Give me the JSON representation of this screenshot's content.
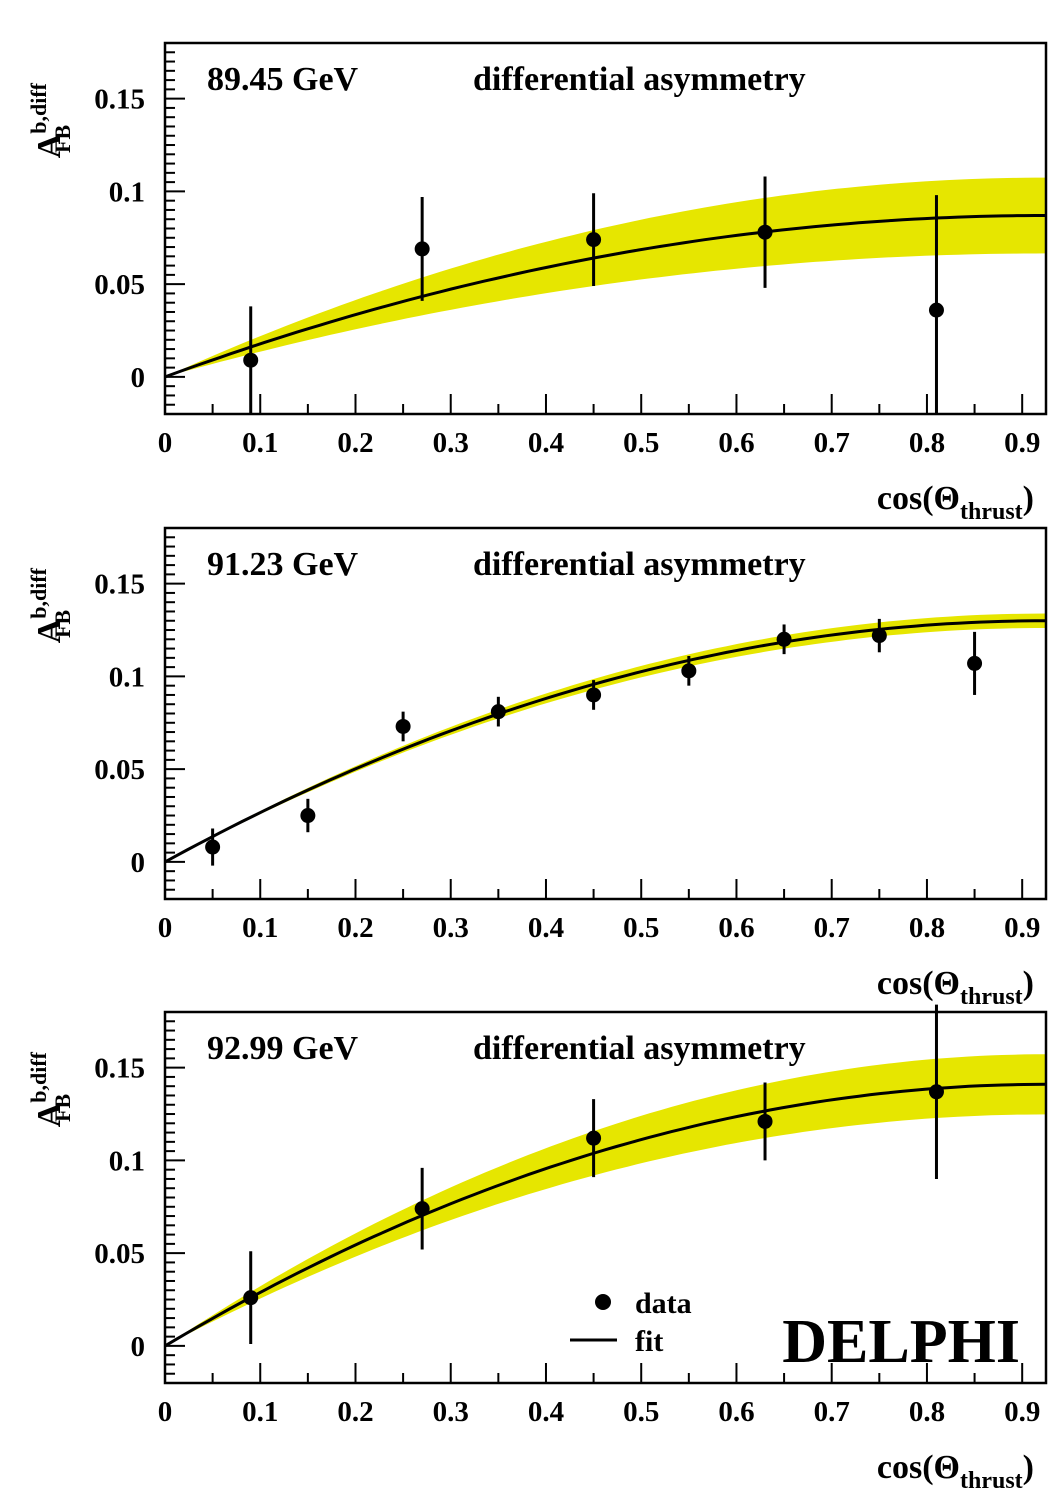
{
  "brand": "DELPHI",
  "legend": {
    "data_label": "data",
    "fit_label": "fit",
    "position": "bottom-right of last panel"
  },
  "colors": {
    "band": "#e6e600",
    "marks": "#000000",
    "background": "#ffffff"
  },
  "chart_data": [
    {
      "type": "scatter",
      "energy_label": "89.45 GeV",
      "subtitle": "differential asymmetry",
      "ylabel": {
        "main": "A",
        "sup": "b,diff",
        "sub": "FB"
      },
      "xlabel": {
        "main": "cos(Θ",
        "sub": "thrust",
        "close": ")"
      },
      "xlim": [
        0,
        0.925
      ],
      "ylim": [
        -0.02,
        0.18
      ],
      "xticks": [
        "0",
        "0.1",
        "0.2",
        "0.3",
        "0.4",
        "0.5",
        "0.6",
        "0.7",
        "0.8",
        "0.9"
      ],
      "yticks": [
        "0",
        "0.05",
        "0.1",
        "0.15"
      ],
      "series": [
        {
          "kind": "points",
          "x": [
            0.09,
            0.27,
            0.45,
            0.63,
            0.81
          ],
          "y": [
            0.009,
            0.069,
            0.074,
            0.078,
            0.036
          ],
          "err": [
            0.029,
            0.028,
            0.025,
            0.03,
            0.062
          ]
        },
        {
          "kind": "fit",
          "asymptote": 0.087,
          "band_relative_halfwidth": 0.235
        }
      ]
    },
    {
      "type": "scatter",
      "energy_label": "91.23 GeV",
      "subtitle": "differential asymmetry",
      "ylabel": {
        "main": "A",
        "sup": "b,diff",
        "sub": "FB"
      },
      "xlabel": {
        "main": "cos(Θ",
        "sub": "thrust",
        "close": ")"
      },
      "xlim": [
        0,
        0.925
      ],
      "ylim": [
        -0.02,
        0.18
      ],
      "xticks": [
        "0",
        "0.1",
        "0.2",
        "0.3",
        "0.4",
        "0.5",
        "0.6",
        "0.7",
        "0.8",
        "0.9"
      ],
      "yticks": [
        "0",
        "0.05",
        "0.1",
        "0.15"
      ],
      "series": [
        {
          "kind": "points",
          "x": [
            0.05,
            0.15,
            0.25,
            0.35,
            0.45,
            0.55,
            0.65,
            0.75,
            0.85
          ],
          "y": [
            0.008,
            0.025,
            0.073,
            0.081,
            0.09,
            0.103,
            0.12,
            0.122,
            0.107
          ],
          "err": [
            0.01,
            0.009,
            0.008,
            0.008,
            0.008,
            0.008,
            0.008,
            0.009,
            0.017
          ]
        },
        {
          "kind": "fit",
          "asymptote": 0.13,
          "band_relative_halfwidth": 0.03
        }
      ]
    },
    {
      "type": "scatter",
      "energy_label": "92.99 GeV",
      "subtitle": "differential asymmetry",
      "ylabel": {
        "main": "A",
        "sup": "b,diff",
        "sub": "FB"
      },
      "xlabel": {
        "main": "cos(Θ",
        "sub": "thrust",
        "close": ")"
      },
      "xlim": [
        0,
        0.925
      ],
      "ylim": [
        -0.02,
        0.18
      ],
      "xticks": [
        "0",
        "0.1",
        "0.2",
        "0.3",
        "0.4",
        "0.5",
        "0.6",
        "0.7",
        "0.8",
        "0.9"
      ],
      "yticks": [
        "0",
        "0.05",
        "0.1",
        "0.15"
      ],
      "series": [
        {
          "kind": "points",
          "x": [
            0.09,
            0.27,
            0.45,
            0.63,
            0.81
          ],
          "y": [
            0.026,
            0.074,
            0.112,
            0.121,
            0.137
          ],
          "err": [
            0.025,
            0.022,
            0.021,
            0.021,
            0.047
          ]
        },
        {
          "kind": "fit",
          "asymptote": 0.141,
          "band_relative_halfwidth": 0.115
        }
      ]
    }
  ]
}
